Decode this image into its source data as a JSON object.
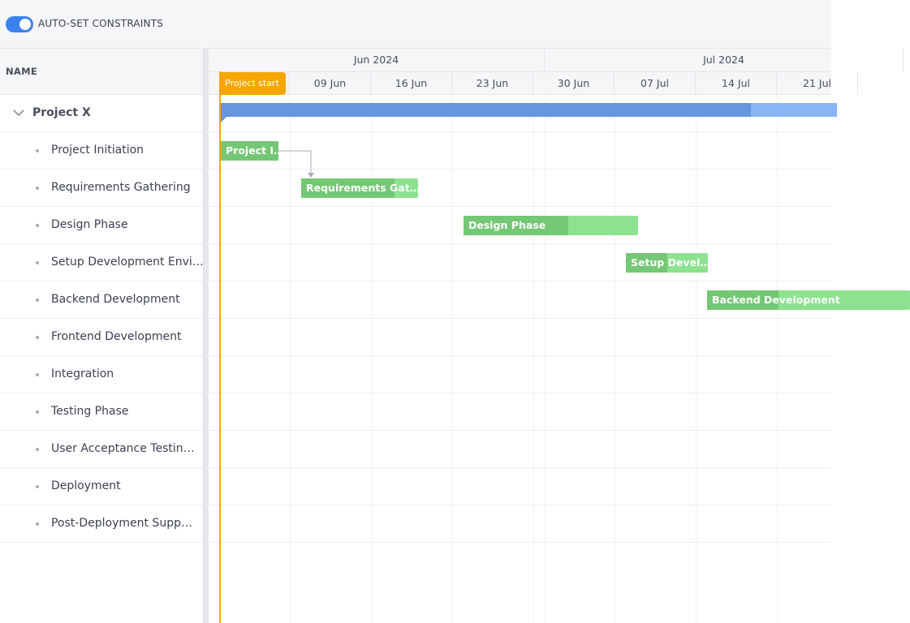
{
  "toolbar": {
    "auto_constraints_label": "AUTO-SET CONSTRAINTS",
    "auto_constraints_on": true
  },
  "grid": {
    "name_header": "NAME"
  },
  "timeline": {
    "months": [
      "Jun 2024",
      "Jul 2024"
    ],
    "weeks": [
      "09 Jun",
      "16 Jun",
      "23 Jun",
      "30 Jun",
      "07 Jul",
      "14 Jul",
      "21 Jul"
    ],
    "project_start_label": "Project start"
  },
  "project": {
    "name": "Project X",
    "percent_done": 86,
    "tasks": [
      {
        "name": "Project Initiation",
        "bar_label": "Project I…",
        "percent_done": 100
      },
      {
        "name": "Requirements Gathering",
        "bar_label": "Requirements Gat…",
        "percent_done": 80
      },
      {
        "name": "Design Phase",
        "bar_label": "Design Phase",
        "percent_done": 60
      },
      {
        "name": "Setup Development Envi…",
        "bar_label": "Setup Devel…",
        "percent_done": 50
      },
      {
        "name": "Backend Development",
        "bar_label": "Backend Development",
        "percent_done": 35
      },
      {
        "name": "Frontend Development"
      },
      {
        "name": "Integration"
      },
      {
        "name": "Testing Phase"
      },
      {
        "name": "User Acceptance Testin…"
      },
      {
        "name": "Deployment"
      },
      {
        "name": "Post-Deployment Supp…"
      }
    ]
  },
  "colors": {
    "accent": "#3b82f0",
    "summary_bar": "#8ab4f8",
    "summary_progress": "#6795de",
    "task_bar": "#8de28f",
    "task_progress": "#74c774",
    "project_start": "#f5a700"
  },
  "icons": {
    "expand": "chevron-down-icon",
    "bullet": "bullet-dot-icon"
  }
}
